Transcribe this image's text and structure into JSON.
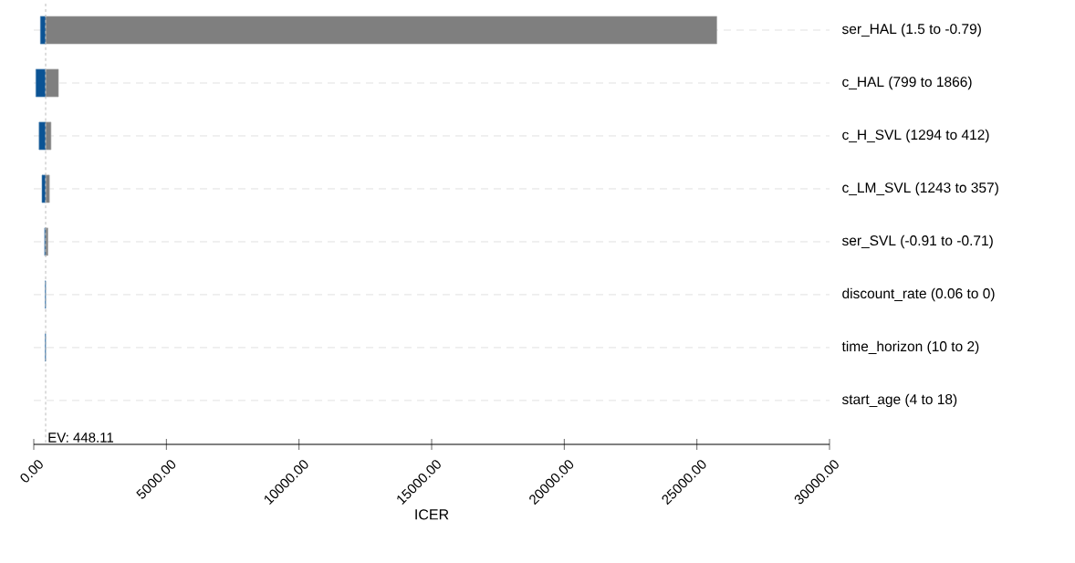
{
  "chart_data": {
    "type": "bar",
    "orientation": "horizontal",
    "xlabel": "ICER",
    "categories": [
      "ser_HAL (1.5 to -0.79)",
      "c_HAL (799 to 1866)",
      "c_H_SVL (1294 to 412)",
      "c_LM_SVL (1243 to 357)",
      "ser_SVL (-0.91 to -0.71)",
      "discount_rate (0.06 to 0)",
      "time_horizon (10 to 2)",
      "start_age (4 to 18)"
    ],
    "series": [
      {
        "color": "#0b5394",
        "base": [
          250,
          80,
          200,
          310,
          410,
          430,
          430,
          null
        ],
        "values": [
          200,
          370,
          250,
          140,
          40,
          20,
          20,
          null
        ]
      },
      {
        "color": "#7f7f7f",
        "base": [
          450,
          450,
          450,
          450,
          450,
          null,
          null,
          null
        ],
        "values": [
          25300,
          480,
          200,
          140,
          80,
          null,
          null,
          null
        ]
      }
    ],
    "xlim": [
      0,
      30000
    ],
    "xticks": [
      {
        "value": 0,
        "label": "0.00"
      },
      {
        "value": 5000,
        "label": "5000.00"
      },
      {
        "value": 10000,
        "label": "10000.00"
      },
      {
        "value": 15000,
        "label": "15000.00"
      },
      {
        "value": 20000,
        "label": "20000.00"
      },
      {
        "value": 25000,
        "label": "25000.00"
      },
      {
        "value": 30000,
        "label": "30000.00"
      }
    ],
    "ref_lines": [
      {
        "axis": "x",
        "value": 448.11,
        "label": "EV: 448.11",
        "color": "#bbbbbb",
        "line_style": "dashed"
      }
    ],
    "grid": "y"
  }
}
